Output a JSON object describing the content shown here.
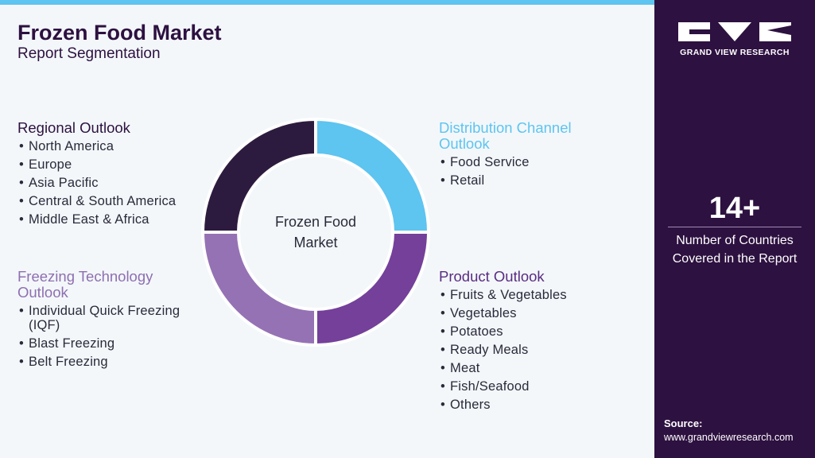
{
  "header": {
    "title": "Frozen Food Market",
    "subtitle": "Report Segmentation"
  },
  "donut_label": "Frozen Food Market",
  "sections": [
    {
      "title": "Regional Outlook",
      "items": [
        "North America",
        "Europe",
        "Asia Pacific",
        "Central & South America",
        "Middle East & Africa"
      ]
    },
    {
      "title": "Distribution Channel Outlook",
      "items": [
        "Food Service",
        "Retail"
      ]
    },
    {
      "title": "Freezing Technology Outlook",
      "items": [
        "Individual Quick Freezing (IQF)",
        "Blast Freezing",
        "Belt Freezing"
      ]
    },
    {
      "title": "Product Outlook",
      "items": [
        "Fruits & Vegetables",
        "Vegetables",
        "Potatoes",
        "Ready Meals",
        "Meat",
        "Fish/Seafood",
        "Others"
      ]
    }
  ],
  "sidebar": {
    "brand": "GRAND VIEW RESEARCH",
    "stat": "14+",
    "stat_label": "Number of Countries Covered in the Report",
    "source_label": "Source:",
    "source_url": "www.grandviewresearch.com"
  }
}
